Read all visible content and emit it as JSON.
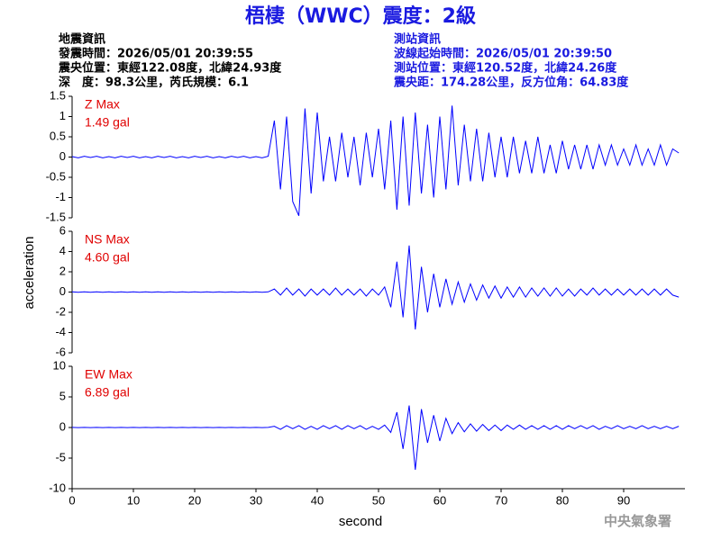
{
  "title": "梧棲（WWC）震度：2級",
  "info_left": {
    "title": "地震資訊",
    "lines": [
      "發震時間：2026/05/01 20:39:55",
      "震央位置：東經122.08度，北緯24.93度",
      "深　度：98.3公里，芮氏規模：6.1"
    ]
  },
  "info_right": {
    "title": "測站資訊",
    "lines": [
      "波線起始時間：2026/05/01 20:39:50",
      "測站位置：東經120.52度，北緯24.26度",
      "震央距：174.28公里，反方位角：64.83度"
    ]
  },
  "y_label": "acceleration",
  "x_label": "second",
  "footer": "中央氣象署",
  "chart_data": [
    {
      "type": "line",
      "max_label": "1.49 gal",
      "x": [
        0,
        1,
        2,
        3,
        4,
        5,
        6,
        7,
        8,
        9,
        10,
        11,
        12,
        13,
        14,
        15,
        16,
        17,
        18,
        19,
        20,
        21,
        22,
        23,
        24,
        25,
        26,
        27,
        28,
        29,
        30,
        31,
        32,
        33,
        34,
        35,
        36,
        37,
        38,
        39,
        40,
        41,
        42,
        43,
        44,
        45,
        46,
        47,
        48,
        49,
        50,
        51,
        52,
        53,
        54,
        55,
        56,
        57,
        58,
        59,
        60,
        61,
        62,
        63,
        64,
        65,
        66,
        67,
        68,
        69,
        70,
        71,
        72,
        73,
        74,
        75,
        76,
        77,
        78,
        79,
        80,
        81,
        82,
        83,
        84,
        85,
        86,
        87,
        88,
        89,
        90,
        91,
        92,
        93,
        94,
        95,
        96,
        97,
        98,
        99
      ],
      "series": [
        {
          "name": "Z Max",
          "color": "#0000ff",
          "values": [
            0.01,
            -0.02,
            0.02,
            -0.01,
            0.02,
            -0.02,
            0.01,
            -0.02,
            0.02,
            -0.01,
            0.02,
            -0.02,
            0.01,
            -0.02,
            0.02,
            -0.01,
            0.02,
            -0.02,
            0.01,
            -0.02,
            0.02,
            -0.01,
            0.02,
            -0.02,
            0.01,
            -0.02,
            0.02,
            -0.01,
            0.02,
            -0.02,
            0.01,
            -0.02,
            0.02,
            0.9,
            -0.8,
            1.0,
            -1.1,
            -1.45,
            1.2,
            -0.9,
            1.1,
            -0.6,
            0.5,
            -0.6,
            0.6,
            -0.5,
            0.5,
            -0.7,
            0.6,
            -0.5,
            0.7,
            -0.8,
            0.9,
            -1.3,
            1.0,
            -1.2,
            1.1,
            -0.9,
            0.8,
            -1.0,
            1.0,
            -0.8,
            1.27,
            -0.7,
            0.8,
            -0.6,
            0.7,
            -0.6,
            0.6,
            -0.5,
            0.5,
            -0.5,
            0.5,
            -0.4,
            0.4,
            -0.4,
            0.5,
            -0.4,
            0.3,
            -0.4,
            0.4,
            -0.3,
            0.3,
            -0.3,
            0.3,
            -0.3,
            0.3,
            -0.2,
            0.3,
            -0.2,
            0.2,
            -0.2,
            0.3,
            -0.2,
            0.2,
            -0.2,
            0.3,
            -0.2,
            0.2,
            0.1
          ]
        }
      ],
      "xlim": [
        0,
        100
      ],
      "ylim": [
        -1.5,
        1.5
      ],
      "yticks": [
        1.5,
        1,
        0.5,
        0,
        -0.5,
        -1,
        -1.5
      ]
    },
    {
      "type": "line",
      "max_label": "4.60 gal",
      "x": [
        0,
        1,
        2,
        3,
        4,
        5,
        6,
        7,
        8,
        9,
        10,
        11,
        12,
        13,
        14,
        15,
        16,
        17,
        18,
        19,
        20,
        21,
        22,
        23,
        24,
        25,
        26,
        27,
        28,
        29,
        30,
        31,
        32,
        33,
        34,
        35,
        36,
        37,
        38,
        39,
        40,
        41,
        42,
        43,
        44,
        45,
        46,
        47,
        48,
        49,
        50,
        51,
        52,
        53,
        54,
        55,
        56,
        57,
        58,
        59,
        60,
        61,
        62,
        63,
        64,
        65,
        66,
        67,
        68,
        69,
        70,
        71,
        72,
        73,
        74,
        75,
        76,
        77,
        78,
        79,
        80,
        81,
        82,
        83,
        84,
        85,
        86,
        87,
        88,
        89,
        90,
        91,
        92,
        93,
        94,
        95,
        96,
        97,
        98,
        99
      ],
      "series": [
        {
          "name": "NS Max",
          "color": "#0000ff",
          "values": [
            0.02,
            -0.02,
            0.02,
            -0.02,
            0.02,
            -0.02,
            0.02,
            -0.02,
            0.02,
            -0.02,
            0.02,
            -0.02,
            0.02,
            -0.02,
            0.02,
            -0.02,
            0.02,
            -0.02,
            0.02,
            -0.02,
            0.02,
            -0.02,
            0.02,
            -0.02,
            0.02,
            -0.02,
            0.02,
            -0.02,
            0.02,
            -0.02,
            0.02,
            -0.02,
            0.02,
            0.3,
            -0.3,
            0.4,
            -0.3,
            0.3,
            -0.4,
            0.3,
            -0.3,
            0.3,
            -0.3,
            0.4,
            -0.3,
            0.3,
            -0.3,
            0.3,
            -0.4,
            0.3,
            -0.3,
            0.5,
            -1.5,
            3.0,
            -2.5,
            4.6,
            -3.7,
            2.5,
            -2.0,
            1.8,
            -1.5,
            1.3,
            -1.2,
            1.0,
            -1.0,
            0.8,
            -0.8,
            0.7,
            -0.6,
            0.6,
            -0.6,
            0.5,
            -0.5,
            0.5,
            -0.5,
            0.4,
            -0.4,
            0.4,
            -0.4,
            0.4,
            -0.4,
            0.3,
            -0.4,
            0.3,
            -0.3,
            0.4,
            -0.3,
            0.3,
            -0.3,
            0.3,
            -0.3,
            0.3,
            -0.3,
            0.3,
            -0.3,
            0.3,
            -0.3,
            0.3,
            -0.3,
            -0.5
          ]
        }
      ],
      "xlim": [
        0,
        100
      ],
      "ylim": [
        -6,
        6
      ],
      "yticks": [
        6,
        4,
        2,
        0,
        -2,
        -4,
        -6
      ]
    },
    {
      "type": "line",
      "max_label": "6.89 gal",
      "x": [
        0,
        1,
        2,
        3,
        4,
        5,
        6,
        7,
        8,
        9,
        10,
        11,
        12,
        13,
        14,
        15,
        16,
        17,
        18,
        19,
        20,
        21,
        22,
        23,
        24,
        25,
        26,
        27,
        28,
        29,
        30,
        31,
        32,
        33,
        34,
        35,
        36,
        37,
        38,
        39,
        40,
        41,
        42,
        43,
        44,
        45,
        46,
        47,
        48,
        49,
        50,
        51,
        52,
        53,
        54,
        55,
        56,
        57,
        58,
        59,
        60,
        61,
        62,
        63,
        64,
        65,
        66,
        67,
        68,
        69,
        70,
        71,
        72,
        73,
        74,
        75,
        76,
        77,
        78,
        79,
        80,
        81,
        82,
        83,
        84,
        85,
        86,
        87,
        88,
        89,
        90,
        91,
        92,
        93,
        94,
        95,
        96,
        97,
        98,
        99
      ],
      "series": [
        {
          "name": "EW Max",
          "color": "#0000ff",
          "values": [
            0.02,
            -0.02,
            0.02,
            -0.02,
            0.02,
            -0.02,
            0.02,
            -0.02,
            0.02,
            -0.02,
            0.02,
            -0.02,
            0.02,
            -0.02,
            0.02,
            -0.02,
            0.02,
            -0.02,
            0.02,
            -0.02,
            0.02,
            -0.02,
            0.02,
            -0.02,
            0.02,
            -0.02,
            0.02,
            -0.02,
            0.02,
            -0.02,
            0.02,
            -0.02,
            0.02,
            0.2,
            -0.3,
            0.3,
            -0.2,
            0.3,
            -0.3,
            0.2,
            -0.3,
            0.3,
            -0.2,
            0.3,
            -0.3,
            0.3,
            -0.2,
            0.3,
            -0.3,
            0.2,
            -0.3,
            0.4,
            -0.8,
            2.5,
            -3.5,
            3.6,
            -6.9,
            3.0,
            -2.5,
            2.0,
            -2.2,
            1.5,
            -1.0,
            0.8,
            -0.7,
            0.6,
            -0.6,
            0.5,
            -0.5,
            0.4,
            -0.5,
            0.4,
            -0.3,
            0.4,
            -0.3,
            0.3,
            -0.3,
            0.3,
            -0.3,
            0.3,
            -0.3,
            0.3,
            -0.2,
            0.3,
            -0.2,
            0.3,
            -0.3,
            0.2,
            -0.2,
            0.3,
            -0.2,
            0.2,
            -0.2,
            0.3,
            -0.2,
            0.2,
            -0.2,
            0.2,
            -0.2,
            0.2
          ]
        }
      ],
      "xlim": [
        0,
        100
      ],
      "ylim": [
        -10,
        10
      ],
      "yticks": [
        10,
        5,
        0,
        -5,
        -10
      ],
      "xticks": [
        0,
        10,
        20,
        30,
        40,
        50,
        60,
        70,
        80,
        90
      ]
    }
  ]
}
